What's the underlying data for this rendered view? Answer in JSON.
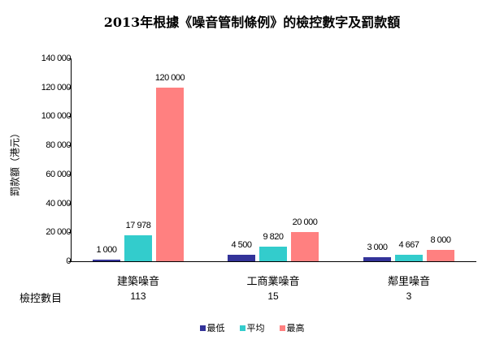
{
  "chart_data": {
    "type": "bar",
    "title": "2013年根據《噪音管制條例》的檢控數字及罰款額",
    "xlabel": "",
    "ylabel": "罰款額（港元）",
    "ylim": [
      0,
      140000
    ],
    "yticks": [
      "0",
      "20 000",
      "40 000",
      "60 000",
      "80 000",
      "100 000",
      "120 000",
      "140 000"
    ],
    "categories": [
      "建築噪音",
      "工商業噪音",
      "鄰里噪音"
    ],
    "series": [
      {
        "name": "最低",
        "color": "#333399",
        "values": [
          1000,
          4500,
          3000
        ],
        "labels": [
          "1 000",
          "4 500",
          "3 000"
        ]
      },
      {
        "name": "平均",
        "color": "#33CCCC",
        "values": [
          17978,
          9820,
          4667
        ],
        "labels": [
          "17 978",
          "9 820",
          "4 667"
        ]
      },
      {
        "name": "最高",
        "color": "#FF8080",
        "values": [
          120000,
          20000,
          8000
        ],
        "labels": [
          "120 000",
          "20 000",
          "8 000"
        ]
      }
    ],
    "extra_row": {
      "label": "檢控數目",
      "values": [
        "113",
        "15",
        "3"
      ]
    },
    "legend_position": "bottom",
    "grid": false
  }
}
